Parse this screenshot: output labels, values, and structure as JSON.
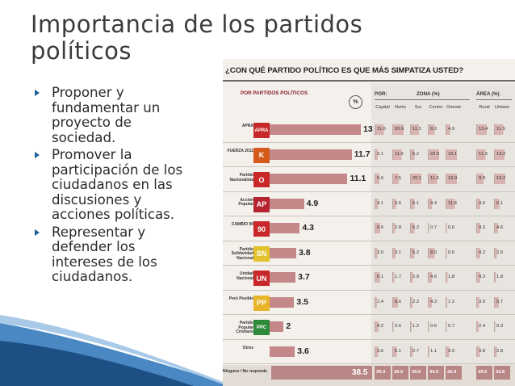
{
  "slide": {
    "title_line1": "Importancia de los partidos",
    "title_line2": "políticos",
    "bullets": [
      {
        "lines": [
          "Proponer y",
          "fundamentar un",
          "proyecto de",
          "sociedad."
        ]
      },
      {
        "lines": [
          "Promover la",
          "participación de los",
          "ciudadanos en las",
          "discusiones y",
          "acciones políticas."
        ]
      },
      {
        "lines": [
          "Representar y",
          "defender los",
          "intereses de los",
          "ciudadanos."
        ]
      }
    ]
  },
  "infographic": {
    "title": "¿CON QUÉ PARTIDO POLÍTICO ES QUE MÁS SIMPATIZA USTED?",
    "header_parties": "POR PARTIDOS POLÍTICOS",
    "header_pct": "%",
    "header_por": "POR:",
    "header_zona": "ZONA (%)",
    "header_area": "ÁREA (%)",
    "zona_columns": [
      "Capital",
      "Norte",
      "Sur",
      "Centro",
      "Oriente"
    ],
    "area_columns": [
      "Rural",
      "Urbano"
    ],
    "rows": [
      {
        "name": "APRA",
        "logo_text": "APRA",
        "logo_color": "#c8282a",
        "value": "13",
        "zona": [
          "11.6",
          "20.9",
          "11.2",
          "8.3",
          "4.9"
        ],
        "area": [
          "13.4",
          "11.5"
        ]
      },
      {
        "name": "FUERZA 2011",
        "logo_text": "K",
        "logo_color": "#d55b1c",
        "value": "11.7",
        "zona": [
          "3.1",
          "11.6",
          "5.2",
          "22.0",
          "15.1"
        ],
        "area": [
          "11.3",
          "13.2"
        ]
      },
      {
        "name": "Partido Nacionalista",
        "logo_text": "O",
        "logo_color": "#c8282a",
        "value": "11.1",
        "zona": [
          "5.6",
          "7.5",
          "20.1",
          "11.5",
          "16.9"
        ],
        "area": [
          "8.9",
          "19.2"
        ]
      },
      {
        "name": "Acción Popular",
        "logo_text": "AP",
        "logo_color": "#b82330",
        "value": "4.9",
        "zona": [
          "4.1",
          "3.6",
          "5.1",
          "4.4",
          "11.8"
        ],
        "area": [
          "4.6",
          "6.1"
        ]
      },
      {
        "name": "CAMBIO 90",
        "logo_text": "90",
        "logo_color": "#c8282a",
        "value": "4.3",
        "zona": [
          "6.6",
          "2.8",
          "5.2",
          "0.7",
          "0.6"
        ],
        "area": [
          "4.3",
          "4.6"
        ]
      },
      {
        "name": "Partido Solidaridad Nacional",
        "logo_text": "SN",
        "logo_color": "#e3c22c",
        "value": "3.8",
        "zona": [
          "3.0",
          "3.1",
          "5.2",
          "8.0",
          "0.6"
        ],
        "area": [
          "4.2",
          "2.6"
        ]
      },
      {
        "name": "Unidad Nacional",
        "logo_text": "UN",
        "logo_color": "#c8282a",
        "value": "3.7",
        "zona": [
          "6.1",
          "1.7",
          "2.9",
          "4.6",
          "1.8"
        ],
        "area": [
          "4.3",
          "1.8"
        ]
      },
      {
        "name": "Perú Posible",
        "logo_text": "PP",
        "logo_color": "#e8b52a",
        "value": "3.5",
        "zona": [
          "2.4",
          "6.6",
          "2.2",
          "4.3",
          "1.2"
        ],
        "area": [
          "3.0",
          "5.7"
        ]
      },
      {
        "name": "Partido Popular Cristiano",
        "logo_text": "PPC",
        "logo_color": "#2f8a3a",
        "value": "2",
        "zona": [
          "4.2",
          "0.6",
          "1.2",
          "0.6",
          "0.7"
        ],
        "area": [
          "2.4",
          "0.3"
        ]
      },
      {
        "name": "Otros",
        "logo_text": "",
        "logo_color": "#f4f1ec",
        "value": "3.6",
        "zona": [
          "3.6",
          "5.1",
          "2.7",
          "1.1",
          "3.9"
        ],
        "area": [
          "3.8",
          "2.8"
        ]
      }
    ],
    "last_row": {
      "name": "Ninguno / No responde",
      "value": "38.5",
      "zona": [
        "39.4",
        "36.5",
        "39.0",
        "34.5",
        "42.4"
      ],
      "area": [
        "39.9",
        "32.8"
      ]
    }
  },
  "chart_data": {
    "type": "bar",
    "title": "¿CON QUÉ PARTIDO POLÍTICO ES QUE MÁS SIMPATIZA USTED?",
    "categories": [
      "APRA",
      "FUERZA 2011",
      "Partido Nacionalista",
      "Acción Popular",
      "CAMBIO 90",
      "Partido Solidaridad Nacional",
      "Unidad Nacional",
      "Perú Posible",
      "Partido Popular Cristiano",
      "Otros",
      "Ninguno / No responde"
    ],
    "values": [
      13,
      11.7,
      11.1,
      4.9,
      4.3,
      3.8,
      3.7,
      3.5,
      2,
      3.6,
      38.5
    ],
    "orientation": "horizontal",
    "xlabel": "%",
    "ylabel": ""
  },
  "colors": {
    "bar": "#c48888",
    "accent": "#1f5f96",
    "table_border": "#b7a9a5"
  }
}
